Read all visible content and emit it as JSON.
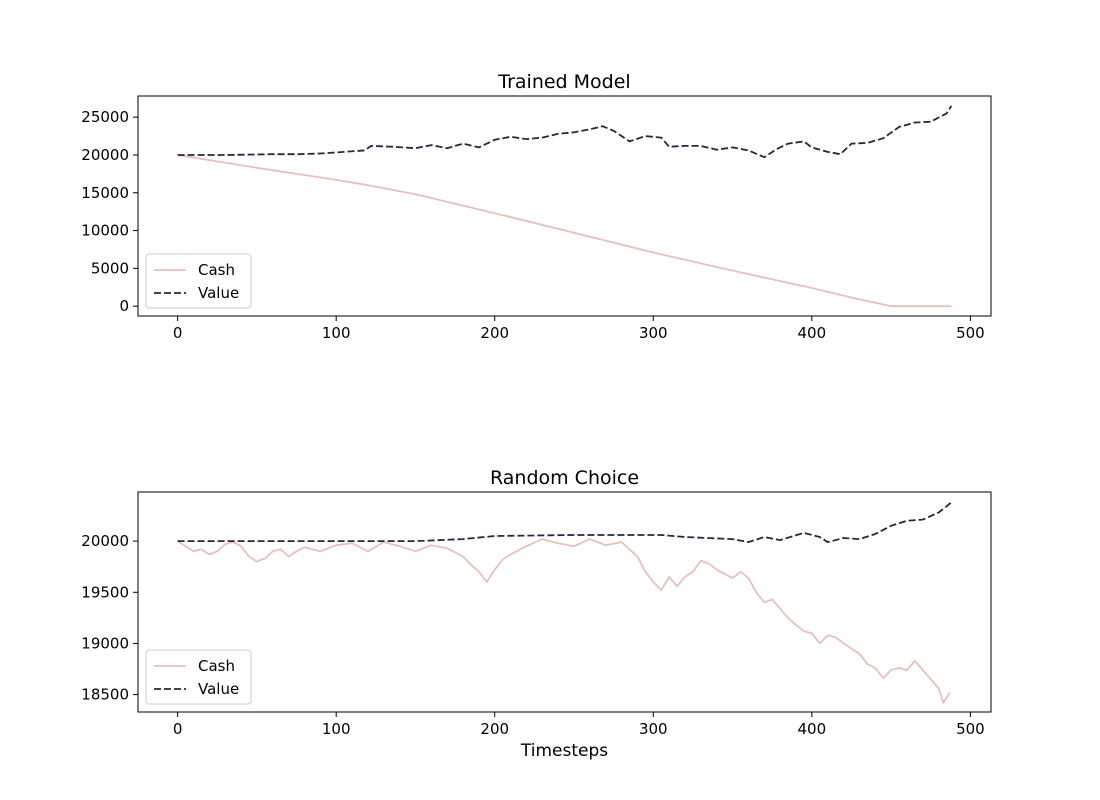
{
  "chart_data": [
    {
      "type": "line",
      "title": "Trained Model",
      "xlabel": "",
      "ylabel": "",
      "xlim": [
        -25,
        513
      ],
      "ylim": [
        -1300,
        27800
      ],
      "xticks": [
        0,
        100,
        200,
        300,
        400,
        500
      ],
      "yticks": [
        0,
        5000,
        10000,
        15000,
        20000,
        25000
      ],
      "grid": false,
      "legend_position": "lower-left",
      "series": [
        {
          "name": "Cash",
          "style": "solid",
          "color": "#e6c1bc",
          "points": [
            [
              0,
              20000
            ],
            [
              50,
              18300
            ],
            [
              100,
              16700
            ],
            [
              120,
              16000
            ],
            [
              150,
              14800
            ],
            [
              200,
              12300
            ],
            [
              250,
              9700
            ],
            [
              300,
              7100
            ],
            [
              350,
              4700
            ],
            [
              400,
              2400
            ],
            [
              430,
              900
            ],
            [
              450,
              0
            ],
            [
              488,
              0
            ]
          ]
        },
        {
          "name": "Value",
          "style": "dashed",
          "color": "#2a2540",
          "points": [
            [
              0,
              20000
            ],
            [
              30,
              20000
            ],
            [
              60,
              20100
            ],
            [
              75,
              20100
            ],
            [
              90,
              20200
            ],
            [
              105,
              20400
            ],
            [
              118,
              20600
            ],
            [
              122,
              21200
            ],
            [
              135,
              21100
            ],
            [
              150,
              20900
            ],
            [
              160,
              21300
            ],
            [
              170,
              20900
            ],
            [
              180,
              21500
            ],
            [
              190,
              21000
            ],
            [
              200,
              22000
            ],
            [
              210,
              22400
            ],
            [
              220,
              22100
            ],
            [
              230,
              22300
            ],
            [
              240,
              22800
            ],
            [
              250,
              23000
            ],
            [
              260,
              23400
            ],
            [
              268,
              23800
            ],
            [
              275,
              23200
            ],
            [
              285,
              21800
            ],
            [
              295,
              22500
            ],
            [
              305,
              22300
            ],
            [
              310,
              21100
            ],
            [
              320,
              21200
            ],
            [
              330,
              21200
            ],
            [
              340,
              20700
            ],
            [
              350,
              21000
            ],
            [
              360,
              20600
            ],
            [
              370,
              19700
            ],
            [
              378,
              20800
            ],
            [
              385,
              21500
            ],
            [
              395,
              21800
            ],
            [
              400,
              21000
            ],
            [
              410,
              20400
            ],
            [
              418,
              20100
            ],
            [
              425,
              21500
            ],
            [
              435,
              21600
            ],
            [
              445,
              22200
            ],
            [
              455,
              23700
            ],
            [
              465,
              24300
            ],
            [
              475,
              24400
            ],
            [
              485,
              25500
            ],
            [
              488,
              26500
            ]
          ]
        }
      ]
    },
    {
      "type": "line",
      "title": "Random Choice",
      "xlabel": "Timesteps",
      "ylabel": "",
      "xlim": [
        -25,
        513
      ],
      "ylim": [
        18330,
        20480
      ],
      "xticks": [
        0,
        100,
        200,
        300,
        400,
        500
      ],
      "yticks": [
        18500,
        19000,
        19500,
        20000
      ],
      "grid": false,
      "legend_position": "lower-left",
      "series": [
        {
          "name": "Cash",
          "style": "solid",
          "color": "#e6c1bc",
          "points": [
            [
              0,
              20000
            ],
            [
              5,
              19950
            ],
            [
              10,
              19900
            ],
            [
              15,
              19920
            ],
            [
              20,
              19870
            ],
            [
              25,
              19900
            ],
            [
              30,
              19970
            ],
            [
              35,
              19990
            ],
            [
              40,
              19950
            ],
            [
              45,
              19850
            ],
            [
              50,
              19800
            ],
            [
              55,
              19830
            ],
            [
              60,
              19900
            ],
            [
              65,
              19920
            ],
            [
              70,
              19850
            ],
            [
              75,
              19900
            ],
            [
              80,
              19940
            ],
            [
              90,
              19900
            ],
            [
              100,
              19960
            ],
            [
              110,
              19980
            ],
            [
              120,
              19900
            ],
            [
              130,
              19990
            ],
            [
              140,
              19950
            ],
            [
              150,
              19900
            ],
            [
              160,
              19960
            ],
            [
              170,
              19930
            ],
            [
              180,
              19850
            ],
            [
              185,
              19770
            ],
            [
              190,
              19700
            ],
            [
              195,
              19600
            ],
            [
              200,
              19720
            ],
            [
              205,
              19820
            ],
            [
              210,
              19870
            ],
            [
              220,
              19950
            ],
            [
              230,
              20020
            ],
            [
              240,
              19980
            ],
            [
              250,
              19950
            ],
            [
              260,
              20020
            ],
            [
              270,
              19960
            ],
            [
              280,
              19990
            ],
            [
              290,
              19850
            ],
            [
              295,
              19700
            ],
            [
              300,
              19600
            ],
            [
              305,
              19520
            ],
            [
              310,
              19650
            ],
            [
              315,
              19560
            ],
            [
              320,
              19650
            ],
            [
              325,
              19700
            ],
            [
              330,
              19810
            ],
            [
              335,
              19780
            ],
            [
              340,
              19720
            ],
            [
              345,
              19680
            ],
            [
              350,
              19640
            ],
            [
              355,
              19700
            ],
            [
              360,
              19640
            ],
            [
              365,
              19500
            ],
            [
              370,
              19400
            ],
            [
              375,
              19430
            ],
            [
              380,
              19340
            ],
            [
              385,
              19250
            ],
            [
              390,
              19180
            ],
            [
              395,
              19120
            ],
            [
              400,
              19100
            ],
            [
              405,
              19000
            ],
            [
              410,
              19080
            ],
            [
              415,
              19060
            ],
            [
              420,
              19000
            ],
            [
              425,
              18950
            ],
            [
              430,
              18900
            ],
            [
              435,
              18800
            ],
            [
              440,
              18760
            ],
            [
              445,
              18660
            ],
            [
              450,
              18740
            ],
            [
              455,
              18760
            ],
            [
              460,
              18740
            ],
            [
              465,
              18830
            ],
            [
              470,
              18740
            ],
            [
              475,
              18650
            ],
            [
              480,
              18560
            ],
            [
              483,
              18420
            ],
            [
              487,
              18520
            ]
          ]
        },
        {
          "name": "Value",
          "style": "dashed",
          "color": "#2a2540",
          "points": [
            [
              0,
              20000
            ],
            [
              50,
              20000
            ],
            [
              100,
              20000
            ],
            [
              150,
              20000
            ],
            [
              180,
              20020
            ],
            [
              200,
              20050
            ],
            [
              250,
              20060
            ],
            [
              305,
              20060
            ],
            [
              320,
              20040
            ],
            [
              350,
              20020
            ],
            [
              360,
              19990
            ],
            [
              370,
              20040
            ],
            [
              380,
              20010
            ],
            [
              395,
              20080
            ],
            [
              405,
              20040
            ],
            [
              410,
              19990
            ],
            [
              420,
              20030
            ],
            [
              430,
              20020
            ],
            [
              440,
              20070
            ],
            [
              450,
              20150
            ],
            [
              460,
              20200
            ],
            [
              470,
              20210
            ],
            [
              480,
              20280
            ],
            [
              485,
              20340
            ],
            [
              488,
              20380
            ]
          ]
        }
      ]
    }
  ]
}
